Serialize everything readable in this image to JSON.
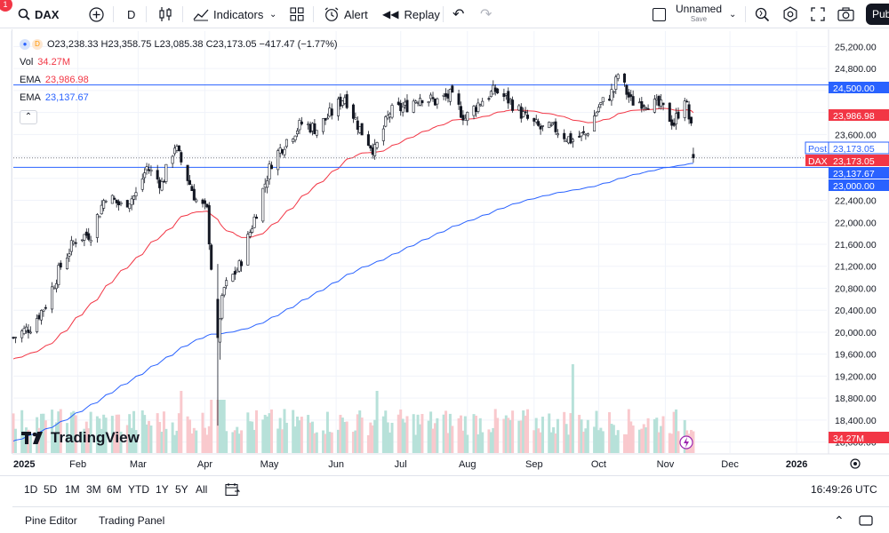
{
  "toolbar": {
    "notification_count": "1",
    "symbol": "DAX",
    "interval": "D",
    "indicators_label": "Indicators",
    "alert_label": "Alert",
    "replay_label": "Replay",
    "layout_name": "Unnamed",
    "save_label": "Save",
    "publish_label": "Pub"
  },
  "legend": {
    "ohlc": "O23,238.33 H23,358.75 L23,085.38 C23,173.05 −417.47 (−1.77%)",
    "vol_label": "Vol",
    "vol_value": "34.27M",
    "ema1_label": "EMA",
    "ema1_value": "23,986.98",
    "ema2_label": "EMA",
    "ema2_value": "23,137.67"
  },
  "watermark": "TradingView",
  "price_axis": {
    "ticks": [
      "25,200.00",
      "24,800.00",
      "23,600.00",
      "22,400.00",
      "22,000.00",
      "21,600.00",
      "21,200.00",
      "20,800.00",
      "20,400.00",
      "20,000.00",
      "19,600.00",
      "19,200.00",
      "18,800.00",
      "18,400.00",
      "18,000.00"
    ],
    "labels": [
      {
        "text": "24,500.00",
        "kind": "hline",
        "color": "#2962ff"
      },
      {
        "text": "23,986.98",
        "kind": "ema1",
        "color": "#f23645"
      },
      {
        "text": "Post",
        "kind": "post",
        "color": "#2962ff"
      },
      {
        "text": "23,173.05",
        "kind": "post_price",
        "color": "#2962ff"
      },
      {
        "text": "DAX",
        "kind": "dax",
        "color": "#f23645"
      },
      {
        "text": "23,173.05",
        "kind": "dax_price",
        "color": "#f23645"
      },
      {
        "text": "23,137.67",
        "kind": "ema2",
        "color": "#2962ff"
      },
      {
        "text": "23,000.00",
        "kind": "hline2",
        "color": "#2962ff"
      },
      {
        "text": "34.27M",
        "kind": "vol",
        "color": "#f23645"
      }
    ]
  },
  "time_axis": [
    "2025",
    "Feb",
    "Mar",
    "Apr",
    "May",
    "Jun",
    "Jul",
    "Aug",
    "Sep",
    "Oct",
    "Nov",
    "Dec",
    "2026"
  ],
  "ranges": [
    "1D",
    "5D",
    "1M",
    "3M",
    "6M",
    "YTD",
    "1Y",
    "5Y",
    "All"
  ],
  "clock": "16:49:26 UTC",
  "bottom": {
    "pine_editor": "Pine Editor",
    "trading_panel": "Trading Panel"
  },
  "colors": {
    "up": "#089981",
    "down": "#f23645",
    "ema_fast": "#f23645",
    "ema_slow": "#2962ff",
    "hline": "#2962ff",
    "grid": "#f0f3fa"
  },
  "chart_data": {
    "type": "candlestick",
    "symbol": "DAX",
    "interval": "D",
    "ylim": [
      17800,
      25400
    ],
    "xlim": [
      "2025-01-02",
      "2026-01-15"
    ],
    "horizontal_lines": [
      24500,
      23000
    ],
    "emas": [
      {
        "name": "EMA",
        "last_value": 23986.98,
        "color": "#f23645"
      },
      {
        "name": "EMA",
        "last_value": 23137.67,
        "color": "#2962ff"
      }
    ],
    "price_path": [
      [
        "2025-01-02",
        19900
      ],
      [
        "2025-01-10",
        20100
      ],
      [
        "2025-01-17",
        20500
      ],
      [
        "2025-01-24",
        21200
      ],
      [
        "2025-01-31",
        21700
      ],
      [
        "2025-02-07",
        21800
      ],
      [
        "2025-02-14",
        22500
      ],
      [
        "2025-02-21",
        22300
      ],
      [
        "2025-02-28",
        22500
      ],
      [
        "2025-03-05",
        23000
      ],
      [
        "2025-03-12",
        22700
      ],
      [
        "2025-03-18",
        23400
      ],
      [
        "2025-03-24",
        22800
      ],
      [
        "2025-03-28",
        22400
      ],
      [
        "2025-04-02",
        22200
      ],
      [
        "2025-04-04",
        21200
      ],
      [
        "2025-04-07",
        19700
      ],
      [
        "2025-04-08",
        20300
      ],
      [
        "2025-04-10",
        20800
      ],
      [
        "2025-04-17",
        21200
      ],
      [
        "2025-04-25",
        22200
      ],
      [
        "2025-05-02",
        23100
      ],
      [
        "2025-05-09",
        23500
      ],
      [
        "2025-05-16",
        23800
      ],
      [
        "2025-05-23",
        23700
      ],
      [
        "2025-05-30",
        24000
      ],
      [
        "2025-06-05",
        24300
      ],
      [
        "2025-06-12",
        23700
      ],
      [
        "2025-06-19",
        23300
      ],
      [
        "2025-06-26",
        24000
      ],
      [
        "2025-07-03",
        24100
      ],
      [
        "2025-07-10",
        24300
      ],
      [
        "2025-07-17",
        24200
      ],
      [
        "2025-07-24",
        24300
      ],
      [
        "2025-07-31",
        23900
      ],
      [
        "2025-08-07",
        24200
      ],
      [
        "2025-08-14",
        24400
      ],
      [
        "2025-08-21",
        24200
      ],
      [
        "2025-08-28",
        23900
      ],
      [
        "2025-09-04",
        23700
      ],
      [
        "2025-09-11",
        23700
      ],
      [
        "2025-09-18",
        23500
      ],
      [
        "2025-09-25",
        23600
      ],
      [
        "2025-10-01",
        24100
      ],
      [
        "2025-10-08",
        24400
      ],
      [
        "2025-10-10",
        24700
      ],
      [
        "2025-10-16",
        24200
      ],
      [
        "2025-10-23",
        24200
      ],
      [
        "2025-10-30",
        24100
      ],
      [
        "2025-11-05",
        23800
      ],
      [
        "2025-11-10",
        24300
      ],
      [
        "2025-11-13",
        23700
      ],
      [
        "2025-11-14",
        23173
      ]
    ],
    "last": {
      "open": 23238.33,
      "high": 23358.75,
      "low": 23085.38,
      "close": 23173.05,
      "change": -417.47,
      "change_pct": -1.77,
      "volume": "34.27M"
    }
  }
}
